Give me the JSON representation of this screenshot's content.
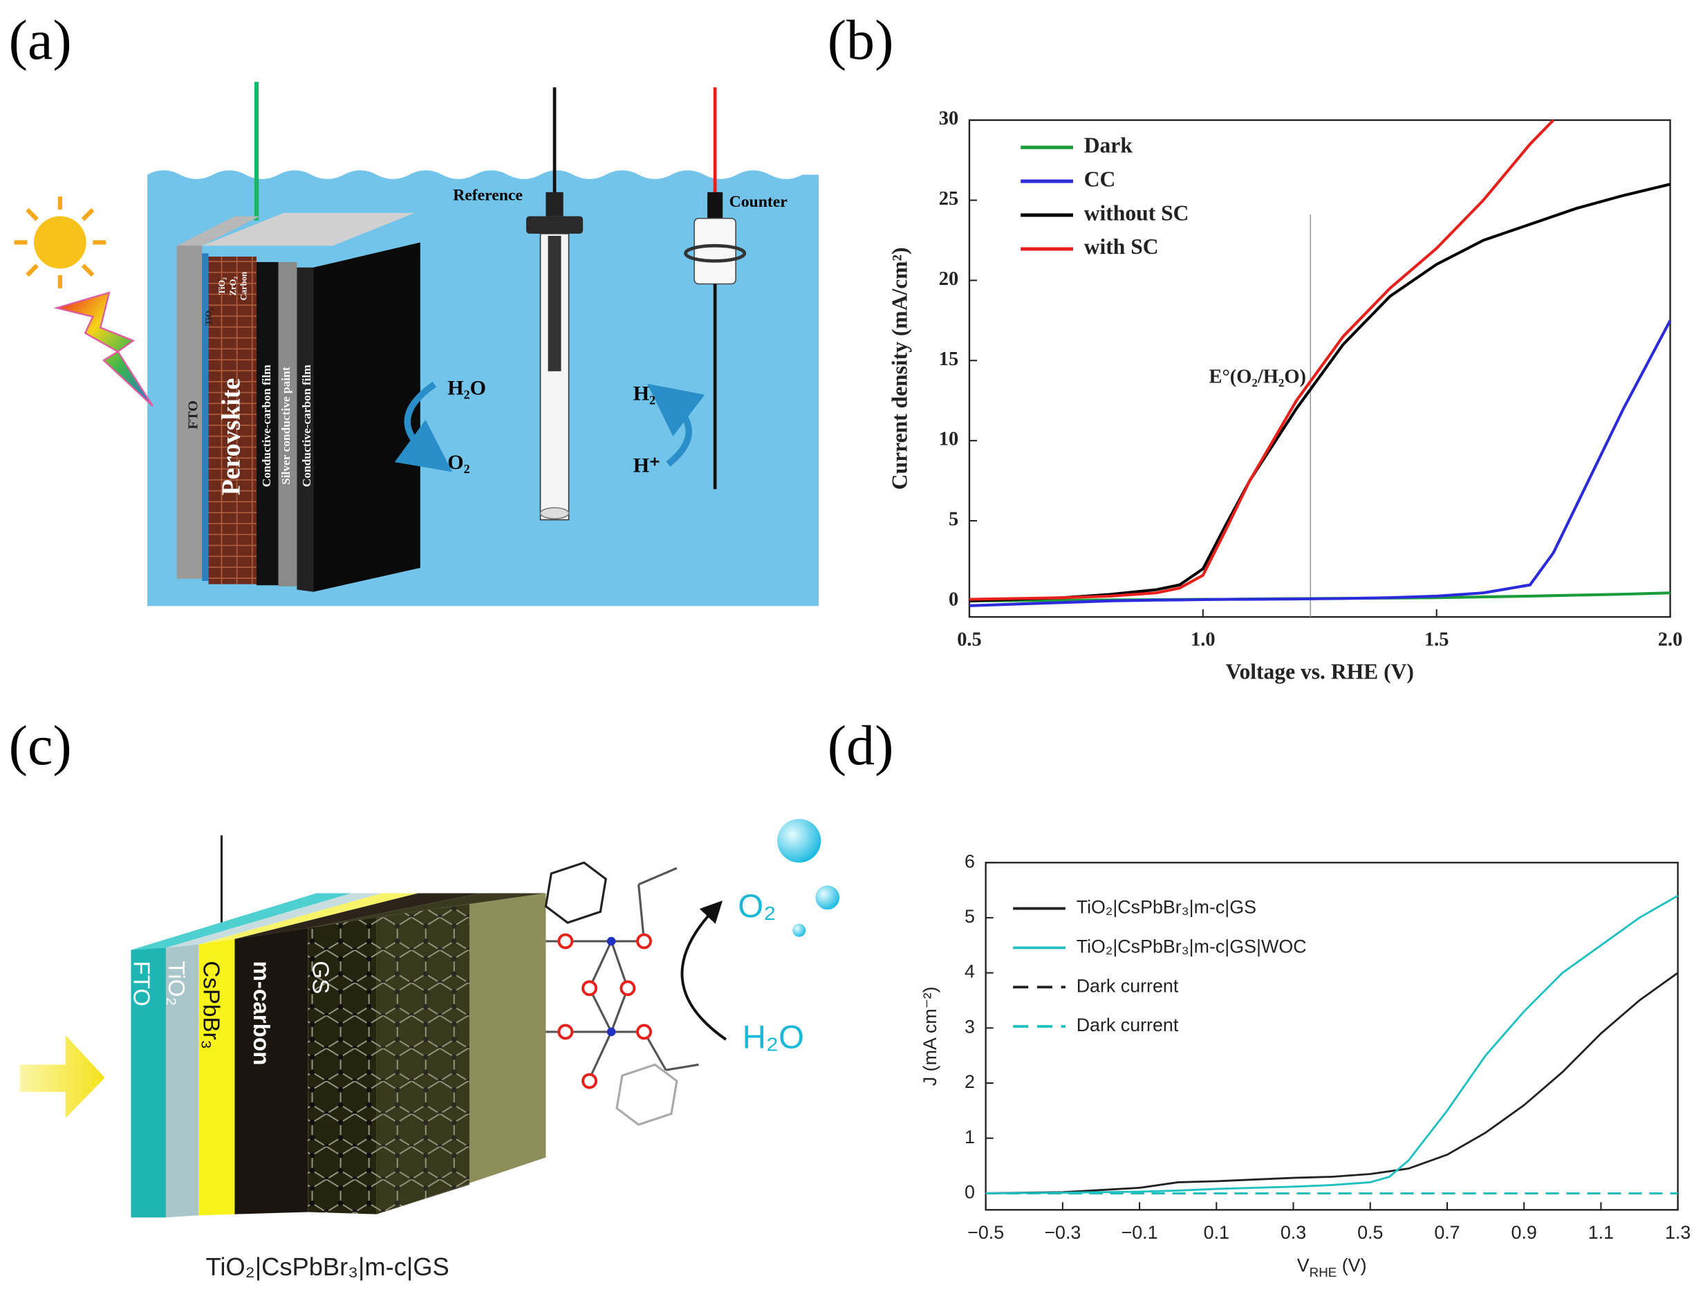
{
  "panel_labels": [
    "(a)",
    "(b)",
    "(c)",
    "(d)"
  ],
  "diagram_a": {
    "reference": "Reference",
    "counter": "Counter",
    "layers": [
      "FTO",
      "TiO₂",
      "Perovskite",
      "TiO₂",
      "ZrO₂",
      "Carbon",
      "Conductive-carbon film",
      "Silver conductive paint",
      "Conductive-carbon film"
    ],
    "h2o": "H₂O",
    "o2": "O₂",
    "h2": "H₂",
    "hplus": "H⁺"
  },
  "diagram_c": {
    "layers": [
      "FTO",
      "TiO₂",
      "CsPbBr₃",
      "m-carbon",
      "GS"
    ],
    "o2": "O₂",
    "h2o": "H₂O",
    "caption": "TiO₂|CsPbBr₃|m-c|GS"
  },
  "chart_data": [
    {
      "type": "line",
      "xlabel": "Voltage vs. RHE (V)",
      "ylabel": "Current density (mA/cm²)",
      "xlim": [
        0.5,
        2.0
      ],
      "ylim": [
        -1,
        30
      ],
      "xticks": [
        0.5,
        {
          "value": 1,
          "label": "1.0"
        },
        1.5,
        {
          "value": 2,
          "label": "2.0"
        }
      ],
      "yticks": [
        0,
        5,
        10,
        15,
        20,
        25,
        30
      ],
      "legend": "upper-left",
      "annotation": {
        "text": "E°(O₂/H₂O)",
        "x": 1.23
      },
      "x": [
        0.5,
        0.6,
        0.7,
        0.8,
        0.9,
        0.95,
        1.0,
        1.05,
        1.1,
        1.2,
        1.3,
        1.4,
        1.5,
        1.6,
        1.7,
        1.75,
        1.8,
        1.9,
        2.0
      ],
      "series": [
        {
          "name": "Dark",
          "color": "#1a9c3a",
          "values": [
            0,
            0.02,
            0.04,
            0.06,
            0.08,
            0.09,
            0.1,
            0.1,
            0.12,
            0.14,
            0.16,
            0.18,
            0.2,
            0.25,
            0.3,
            0.33,
            0.36,
            0.42,
            0.5
          ]
        },
        {
          "name": "CC",
          "color": "#2b2bdc",
          "values": [
            -0.3,
            -0.2,
            -0.1,
            0,
            0.05,
            0.06,
            0.08,
            0.1,
            0.1,
            0.12,
            0.15,
            0.2,
            0.3,
            0.5,
            1.0,
            3,
            6,
            12,
            17.5
          ]
        },
        {
          "name": "without SC",
          "color": "#000000",
          "values": [
            0,
            0.1,
            0.2,
            0.4,
            0.7,
            1.0,
            2.0,
            4.8,
            7.5,
            12,
            16,
            19,
            21,
            22.5,
            23.5,
            24,
            24.5,
            25.3,
            26
          ]
        },
        {
          "name": "with SC",
          "color": "#e8201c",
          "values": [
            0.1,
            0.15,
            0.2,
            0.3,
            0.5,
            0.8,
            1.6,
            4.5,
            7.5,
            12.5,
            16.5,
            19.5,
            22,
            25,
            28.5,
            30,
            null,
            null,
            null
          ]
        }
      ]
    },
    {
      "type": "line",
      "xlabel": "V",
      "xlabel_sub": "RHE",
      "xlabel_unit": " (V)",
      "ylabel": "J (mA cm⁻²)",
      "xlim": [
        -0.5,
        1.3
      ],
      "ylim": [
        -0.3,
        6
      ],
      "xticks": [
        {
          "value": -0.5,
          "label": "−0.5"
        },
        {
          "value": -0.3,
          "label": "−0.3"
        },
        {
          "value": -0.1,
          "label": "−0.1"
        },
        0.1,
        0.3,
        0.5,
        0.7,
        0.9,
        1.1,
        1.3
      ],
      "yticks": [
        0,
        1,
        2,
        3,
        4,
        5,
        6
      ],
      "legend": "upper-left",
      "x": [
        -0.5,
        -0.3,
        -0.1,
        0,
        0.1,
        0.3,
        0.4,
        0.5,
        0.55,
        0.6,
        0.7,
        0.8,
        0.9,
        1.0,
        1.1,
        1.2,
        1.3
      ],
      "series": [
        {
          "name": "TiO₂|CsPbBr₃|m-c|GS",
          "color": "#222222",
          "style": "solid",
          "values": [
            0,
            0.02,
            0.1,
            0.2,
            0.22,
            0.28,
            0.3,
            0.35,
            0.4,
            0.45,
            0.7,
            1.1,
            1.6,
            2.2,
            2.9,
            3.5,
            4.0
          ]
        },
        {
          "name": "TiO₂|CsPbBr₃|m-c|GS|WOC",
          "color": "#1ec0c0",
          "style": "solid",
          "values": [
            0,
            0.01,
            0.03,
            0.05,
            0.08,
            0.12,
            0.15,
            0.2,
            0.3,
            0.6,
            1.5,
            2.5,
            3.3,
            4.0,
            4.5,
            5.0,
            5.4
          ]
        },
        {
          "name": "Dark current",
          "color": "#222222",
          "style": "dashed",
          "values": [
            0,
            0,
            0,
            0,
            0,
            0,
            0,
            0,
            0,
            0,
            0,
            0,
            0,
            0,
            0,
            0,
            0
          ]
        },
        {
          "name": "Dark current",
          "color": "#1ec0c0",
          "style": "dashed",
          "values": [
            0,
            0,
            0,
            0,
            0,
            0,
            0,
            0,
            0,
            0,
            0,
            0,
            0,
            0,
            0,
            0,
            0
          ]
        }
      ]
    }
  ]
}
